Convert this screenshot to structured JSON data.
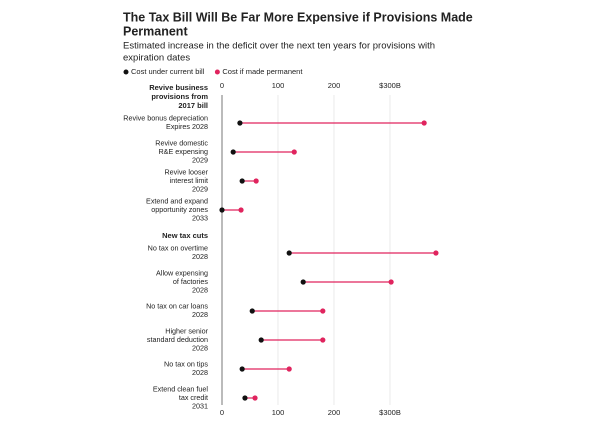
{
  "chart_data": {
    "type": "dumbbell",
    "title": [
      "The Tax Bill Will Be Far More Expensive if Provisions Made",
      "Permanent"
    ],
    "subtitle": [
      "Estimated increase in the deficit over the next ten years for provisions with",
      "expiration dates"
    ],
    "xlim": [
      0,
      400
    ],
    "xticks": [
      0,
      100,
      200,
      {
        "value": 300,
        "label": "$300B"
      }
    ],
    "grid": true,
    "series": [
      {
        "name": "Cost under current bill",
        "color": "#111111",
        "values": [
          32,
          20,
          36,
          0,
          120,
          145,
          54,
          70,
          36,
          41
        ]
      },
      {
        "name": "Cost if made permanent",
        "color": "#e0245e",
        "values": [
          361,
          129,
          61,
          34,
          382,
          302,
          180,
          180,
          120,
          59
        ]
      }
    ],
    "groups": [
      {
        "heading": [
          "Revive business",
          "provisions from",
          "2017 bill"
        ],
        "categories": [
          [
            "Revive bonus depreciation"
          ],
          [
            "Revive domestic",
            "R&E expensing"
          ],
          [
            "Revive looser",
            "interest limit"
          ],
          [
            "Extend and expand",
            "opportunity zones"
          ]
        ],
        "notes": [
          "Expires 2028",
          "2029",
          "2029",
          "2033"
        ]
      },
      {
        "heading": [
          "New tax cuts"
        ],
        "categories": [
          [
            "No tax on overtime"
          ],
          [
            "Allow expensing",
            "of factories"
          ],
          [
            "No tax on car loans"
          ],
          [
            "Higher senior",
            "standard deduction"
          ],
          [
            "No tax on tips"
          ],
          [
            "Extend clean fuel",
            "tax credit"
          ]
        ],
        "notes": [
          "2028",
          "2028",
          "2028",
          "2028",
          "2028",
          "2031"
        ]
      }
    ]
  }
}
